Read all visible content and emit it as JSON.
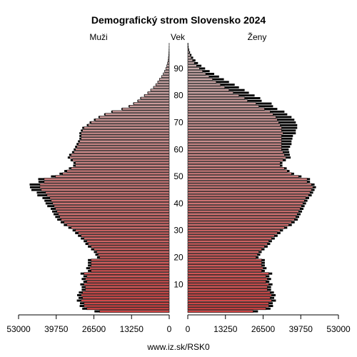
{
  "chart_data": {
    "type": "bar",
    "orientation": "horizontal",
    "title": "Demografický strom Slovensko 2024",
    "left_label": "Muži",
    "center_label": "Vek",
    "right_label": "Ženy",
    "footer": "www.iz.sk/RSK0",
    "age_ticks": [
      "10",
      "20",
      "30",
      "40",
      "50",
      "60",
      "70",
      "80",
      "90"
    ],
    "x_ticks_left": [
      "53000",
      "39750",
      "26500",
      "13250",
      "0"
    ],
    "x_ticks_right": [
      "0",
      "13250",
      "26500",
      "39750",
      "53000"
    ],
    "xlim": [
      0,
      53000
    ],
    "ages": [
      0,
      1,
      2,
      3,
      4,
      5,
      6,
      7,
      8,
      9,
      10,
      11,
      12,
      13,
      14,
      15,
      16,
      17,
      18,
      19,
      20,
      21,
      22,
      23,
      24,
      25,
      26,
      27,
      28,
      29,
      30,
      31,
      32,
      33,
      34,
      35,
      36,
      37,
      38,
      39,
      40,
      41,
      42,
      43,
      44,
      45,
      46,
      47,
      48,
      49,
      50,
      51,
      52,
      53,
      54,
      55,
      56,
      57,
      58,
      59,
      60,
      61,
      62,
      63,
      64,
      65,
      66,
      67,
      68,
      69,
      70,
      71,
      72,
      73,
      74,
      75,
      76,
      77,
      78,
      79,
      80,
      81,
      82,
      83,
      84,
      85,
      86,
      87,
      88,
      89,
      90,
      91,
      92,
      93,
      94,
      95,
      96,
      97,
      98,
      99
    ],
    "series": [
      {
        "name": "Muži",
        "values": [
          24500,
          29000,
          30000,
          30000,
          31000,
          30500,
          31000,
          30500,
          29500,
          29500,
          30000,
          29000,
          29500,
          29000,
          30000,
          27500,
          28000,
          27500,
          27500,
          27500,
          24500,
          25000,
          25500,
          26500,
          27500,
          28500,
          29000,
          30000,
          31000,
          32000,
          33000,
          34500,
          36000,
          37000,
          38000,
          38500,
          39000,
          39500,
          40000,
          40500,
          41000,
          41500,
          42000,
          43000,
          43500,
          45000,
          45500,
          45500,
          44000,
          44000,
          40000,
          37500,
          36000,
          34500,
          33000,
          33000,
          34000,
          35000,
          34500,
          33500,
          33000,
          32500,
          32000,
          31500,
          31000,
          31000,
          31000,
          30500,
          30000,
          28500,
          27500,
          26000,
          24500,
          22500,
          20000,
          16500,
          14000,
          12500,
          11000,
          10000,
          8700,
          7500,
          6500,
          5500,
          4700,
          4000,
          3400,
          2700,
          2100,
          1600,
          1200,
          850,
          600,
          400,
          280,
          180,
          110,
          70,
          40,
          20
        ],
        "highlight_values": [
          1800,
          1600,
          1500,
          1400,
          1500,
          1400,
          1400,
          1300,
          1300,
          1300,
          1300,
          1200,
          1300,
          1200,
          1200,
          1100,
          1200,
          1100,
          1100,
          1100,
          900,
          1000,
          1000,
          1000,
          1100,
          1000,
          1100,
          1100,
          1100,
          1100,
          1000,
          1000,
          1100,
          1200,
          1400,
          1600,
          1700,
          1700,
          1700,
          2400,
          2500,
          2400,
          2600,
          3400,
          3100,
          3500,
          3500,
          3600,
          2000,
          2100,
          1600,
          1100,
          900,
          800,
          800,
          700,
          700,
          700,
          700,
          700,
          600,
          600,
          600,
          600,
          600,
          600,
          600,
          600,
          600,
          500,
          500,
          500,
          400,
          400,
          400,
          300,
          300,
          200,
          200,
          200,
          150,
          150,
          100,
          100,
          100,
          100,
          80,
          80,
          60,
          60,
          40,
          40,
          30,
          20,
          20,
          10,
          10,
          10,
          5,
          5
        ]
      },
      {
        "name": "Ženy",
        "values": [
          23000,
          27500,
          28500,
          28500,
          29500,
          29000,
          29500,
          29000,
          28000,
          28000,
          28500,
          27500,
          28000,
          27500,
          28500,
          26000,
          26500,
          26000,
          26000,
          26000,
          24000,
          24500,
          25000,
          26000,
          27000,
          28000,
          28500,
          29500,
          30500,
          31500,
          32500,
          34000,
          35500,
          36500,
          37500,
          38000,
          38500,
          39000,
          39500,
          40000,
          40500,
          41000,
          41500,
          42500,
          43000,
          43500,
          44000,
          43500,
          42000,
          42000,
          39000,
          36500,
          35000,
          34000,
          32500,
          32500,
          33500,
          34500,
          34000,
          33500,
          33000,
          33000,
          33000,
          33000,
          33000,
          33000,
          33500,
          33000,
          33000,
          32500,
          32000,
          31500,
          31000,
          30000,
          29000,
          27000,
          25000,
          24000,
          21000,
          20000,
          18000,
          16000,
          14500,
          13000,
          11500,
          10000,
          8700,
          7500,
          6300,
          5200,
          4100,
          3100,
          2300,
          1700,
          1200,
          800,
          500,
          300,
          180,
          100
        ],
        "highlight_values": [
          1700,
          1600,
          1500,
          1400,
          1500,
          1400,
          1400,
          1300,
          1300,
          1300,
          1300,
          1200,
          1300,
          1200,
          1200,
          1100,
          1200,
          1100,
          1100,
          1100,
          900,
          1000,
          1000,
          1000,
          1100,
          1000,
          1100,
          1100,
          1100,
          1100,
          1000,
          1000,
          1100,
          1100,
          1200,
          1200,
          1200,
          1200,
          1200,
          1100,
          1100,
          1100,
          1200,
          1100,
          1100,
          1100,
          1100,
          1100,
          1000,
          1000,
          1000,
          900,
          800,
          800,
          800,
          800,
          1000,
          1700,
          1900,
          2200,
          2500,
          3000,
          3500,
          3500,
          3800,
          4000,
          4500,
          5000,
          5500,
          6000,
          6000,
          6000,
          5500,
          5000,
          5000,
          4500,
          5000,
          5500,
          5000,
          5500,
          5500,
          5500,
          5500,
          5000,
          5000,
          4500,
          4000,
          3500,
          3000,
          2500,
          2000,
          1700,
          1300,
          1000,
          700,
          500,
          300,
          200,
          100,
          60
        ]
      }
    ],
    "colors": {
      "gradient_top": "#c8b4b4",
      "gradient_bottom": "#d04545",
      "highlight": "#000000",
      "bar_outline": "#000000"
    }
  }
}
